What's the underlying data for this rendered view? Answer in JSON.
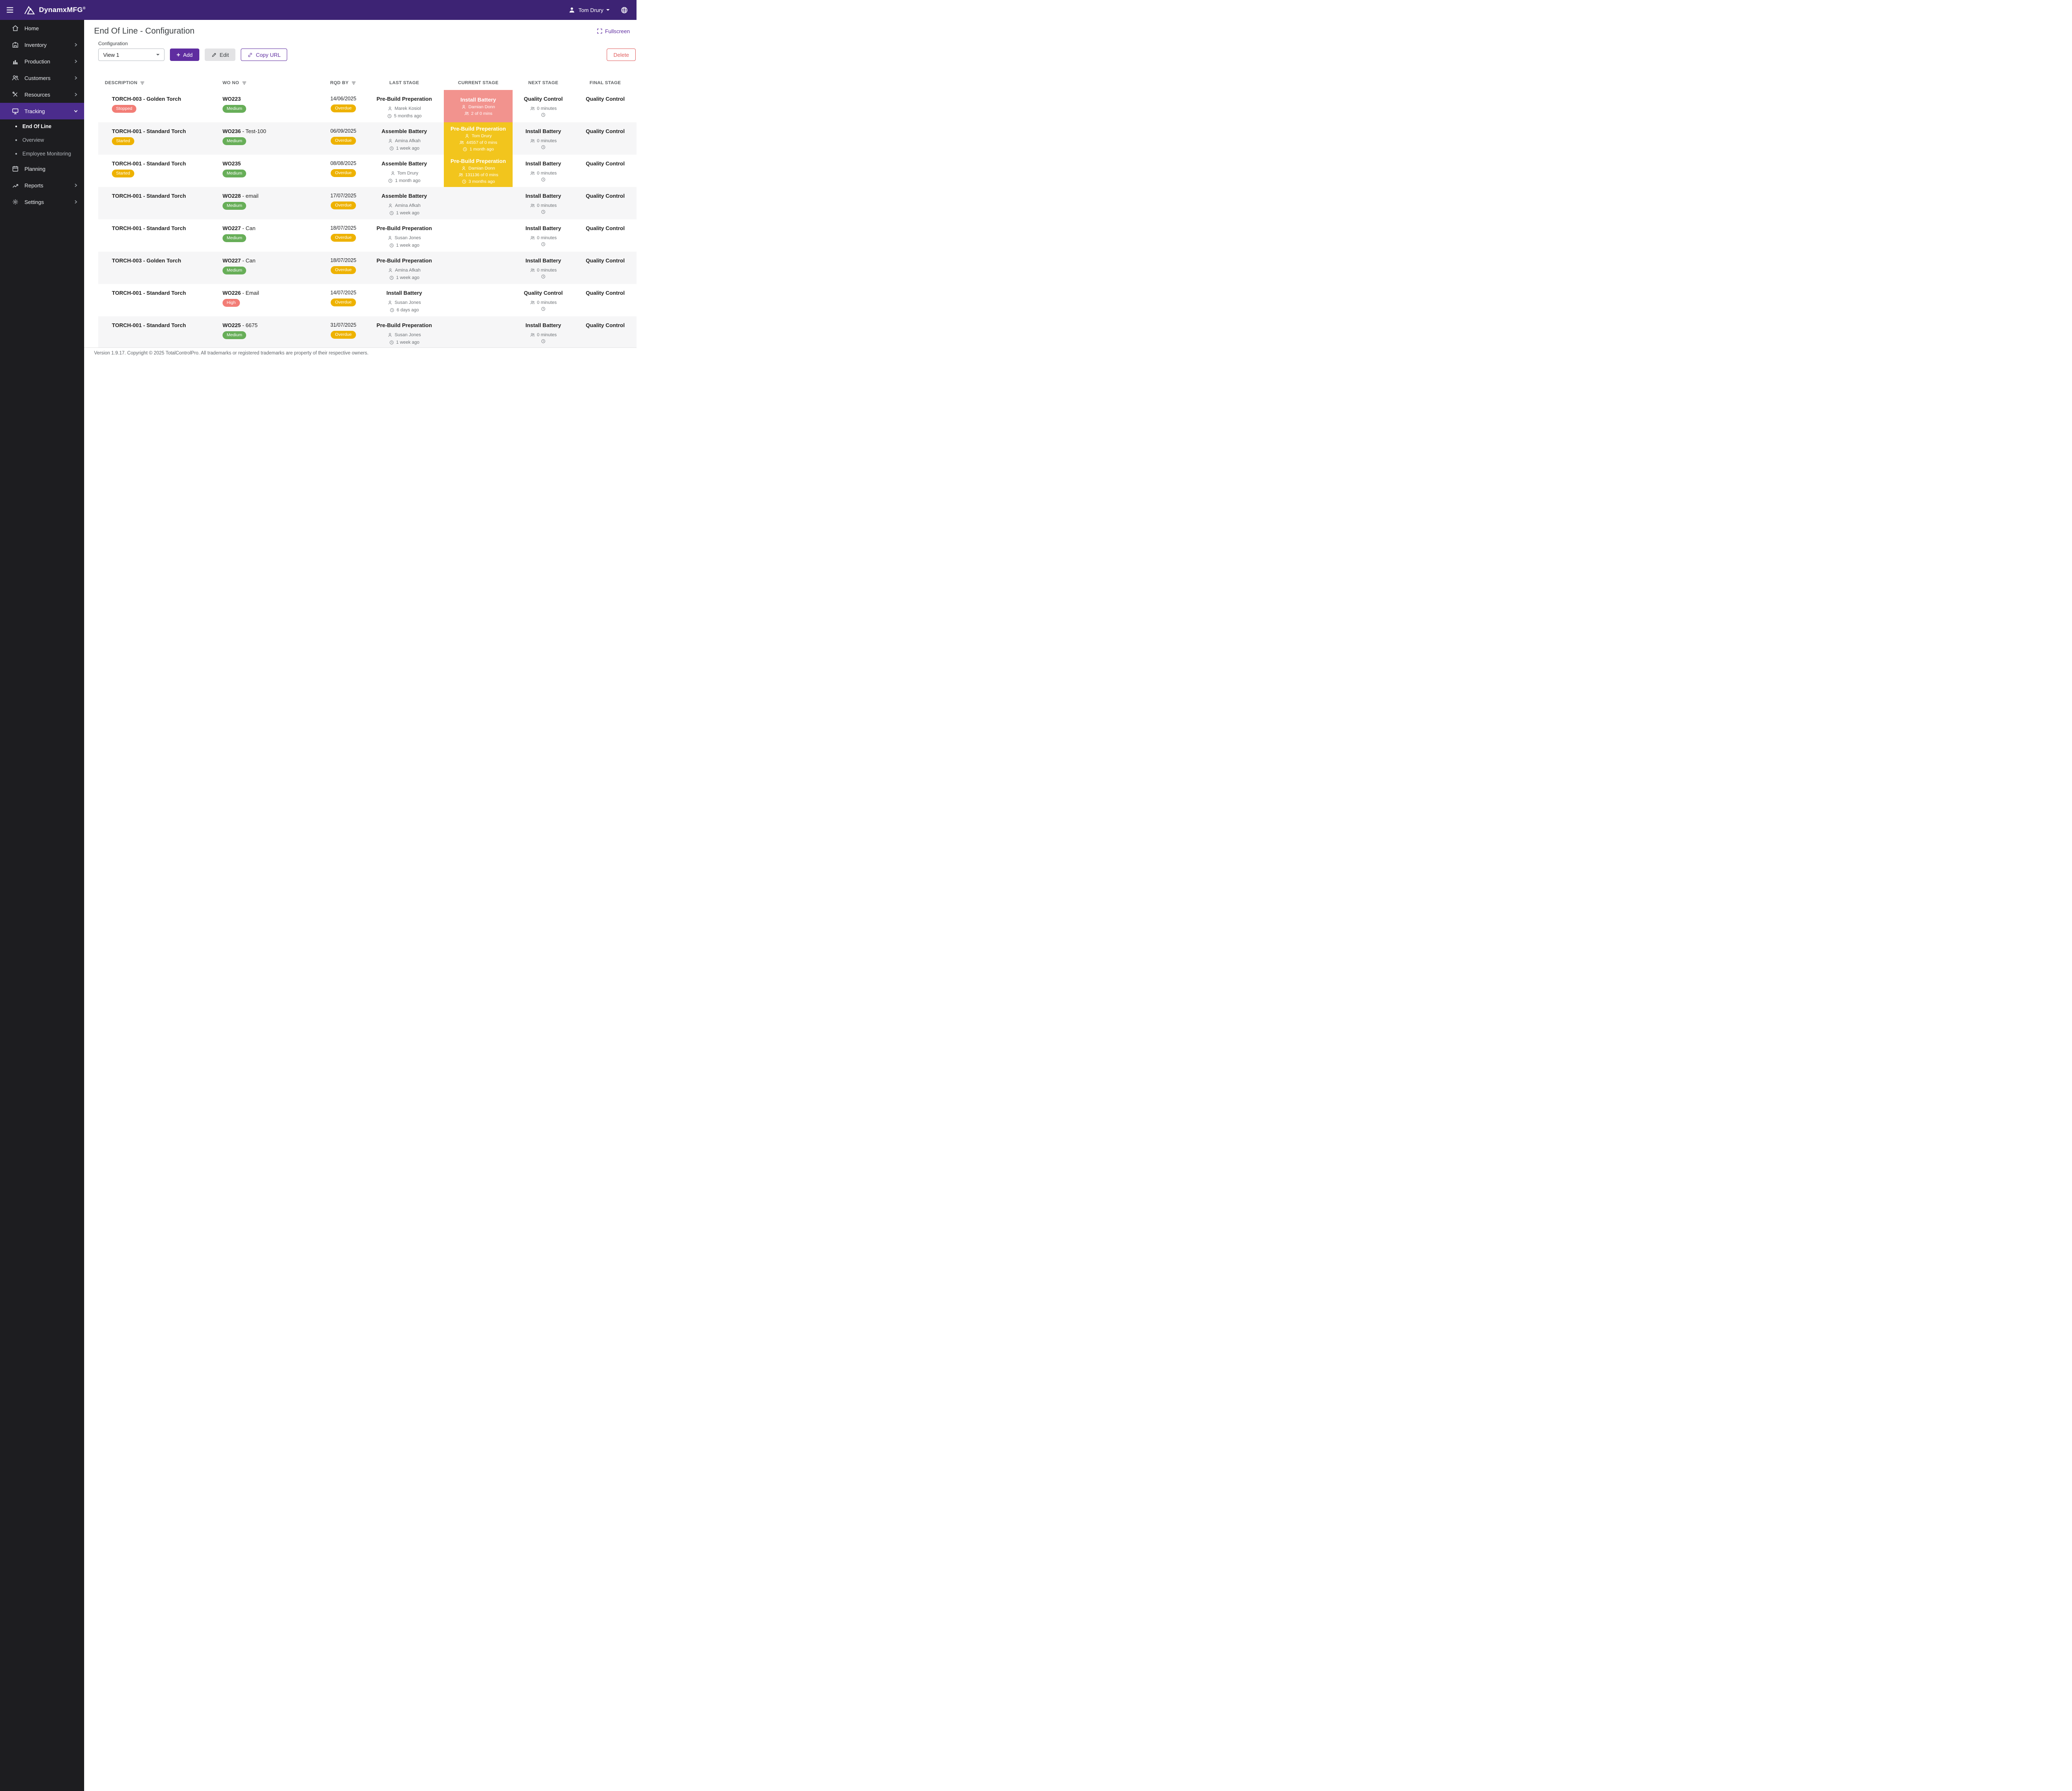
{
  "colors": {
    "topbar": "#3d2374",
    "sidebar": "#1d1d20",
    "sidebar_active": "#4b2c8c",
    "accent": "#5f2da0",
    "green": "#67ae58",
    "amber": "#eeb200",
    "red": "#f27d76",
    "box_red": "#f2938e",
    "box_amber": "#f2c51d",
    "delete": "#e05c5c"
  },
  "topbar": {
    "brand": "DynamxMFG",
    "brand_sup": "®",
    "user": "Tom Drury"
  },
  "sidebar": {
    "items": [
      {
        "id": "home",
        "label": "Home",
        "icon": "home-icon",
        "chevron": null
      },
      {
        "id": "inventory",
        "label": "Inventory",
        "icon": "inventory-icon",
        "chevron": "right"
      },
      {
        "id": "production",
        "label": "Production",
        "icon": "production-icon",
        "chevron": "right"
      },
      {
        "id": "customers",
        "label": "Customers",
        "icon": "customers-icon",
        "chevron": "right"
      },
      {
        "id": "resources",
        "label": "Resources",
        "icon": "resources-icon",
        "chevron": "right"
      },
      {
        "id": "tracking",
        "label": "Tracking",
        "icon": "tracking-icon",
        "chevron": "down",
        "active": true,
        "children": [
          "End Of Line",
          "Overview",
          "Employee Monitoring"
        ],
        "active_child": "End Of Line"
      },
      {
        "id": "planning",
        "label": "Planning",
        "icon": "planning-icon",
        "chevron": null
      },
      {
        "id": "reports",
        "label": "Reports",
        "icon": "reports-icon",
        "chevron": "right"
      },
      {
        "id": "settings",
        "label": "Settings",
        "icon": "settings-icon",
        "chevron": "right"
      }
    ]
  },
  "page": {
    "title": "End Of Line - Configuration",
    "fullscreen_label": "Fullscreen"
  },
  "config": {
    "label": "Configuration",
    "view_value": "View 1",
    "add_label": "Add",
    "edit_label": "Edit",
    "copy_url_label": "Copy URL",
    "delete_label": "Delete"
  },
  "table": {
    "headers": [
      {
        "label": "DESCRIPTION",
        "filter": true
      },
      {
        "label": "WO NO",
        "filter": true
      },
      {
        "label": "RQD BY",
        "filter": true
      },
      {
        "label": "LAST STAGE",
        "filter": false
      },
      {
        "label": "CURRENT STAGE",
        "filter": false
      },
      {
        "label": "NEXT STAGE",
        "filter": false
      },
      {
        "label": "FINAL STAGE",
        "filter": false
      }
    ],
    "rows": [
      {
        "description": "TORCH-003 - Golden Torch",
        "status": {
          "label": "Stopped",
          "type": "red"
        },
        "wo": "WO223",
        "wo_suffix": "",
        "priority": {
          "label": "Medium",
          "type": "green"
        },
        "date": "14/06/2025",
        "due": {
          "label": "Overdue",
          "type": "amber"
        },
        "last": {
          "stage": "Pre-Build Preperation",
          "person": "Marek Kosiol",
          "ago": "5 months ago"
        },
        "current": {
          "stage": "Install Battery",
          "person": "Damian Donn",
          "mins": "2 of 0 mins",
          "ago": "",
          "type": "red"
        },
        "next": {
          "stage": "Quality Control",
          "minutes": "0 minutes"
        },
        "final": "Quality Control"
      },
      {
        "description": "TORCH-001 - Standard Torch",
        "status": {
          "label": "Started",
          "type": "amber"
        },
        "wo": "WO236",
        "wo_suffix": "- Test-100",
        "priority": {
          "label": "Medium",
          "type": "green"
        },
        "date": "06/09/2025",
        "due": {
          "label": "Overdue",
          "type": "amber"
        },
        "last": {
          "stage": "Assemble Battery",
          "person": "Amina Afkah",
          "ago": "1 week ago"
        },
        "current": {
          "stage": "Pre-Build Preperation",
          "person": "Tom Drury",
          "mins": "44557 of 0 mins",
          "ago": "1 month ago",
          "type": "amber"
        },
        "next": {
          "stage": "Install Battery",
          "minutes": "0 minutes"
        },
        "final": "Quality Control"
      },
      {
        "description": "TORCH-001 - Standard Torch",
        "status": {
          "label": "Started",
          "type": "amber"
        },
        "wo": "WO235",
        "wo_suffix": "",
        "priority": {
          "label": "Medium",
          "type": "green"
        },
        "date": "08/08/2025",
        "due": {
          "label": "Overdue",
          "type": "amber"
        },
        "last": {
          "stage": "Assemble Battery",
          "person": "Tom Drury",
          "ago": "1 month ago"
        },
        "current": {
          "stage": "Pre-Build Preperation",
          "person": "Damian Donn",
          "mins": "131136 of 0 mins",
          "ago": "3 months ago",
          "type": "amber"
        },
        "next": {
          "stage": "Install Battery",
          "minutes": "0 minutes"
        },
        "final": "Quality Control"
      },
      {
        "description": "TORCH-001 - Standard Torch",
        "status": null,
        "wo": "WO228",
        "wo_suffix": "- email",
        "priority": {
          "label": "Medium",
          "type": "green"
        },
        "date": "17/07/2025",
        "due": {
          "label": "Overdue",
          "type": "amber"
        },
        "last": {
          "stage": "Assemble Battery",
          "person": "Amina Afkah",
          "ago": "1 week ago"
        },
        "current": null,
        "next": {
          "stage": "Install Battery",
          "minutes": "0 minutes"
        },
        "final": "Quality Control"
      },
      {
        "description": "TORCH-001 - Standard Torch",
        "status": null,
        "wo": "WO227",
        "wo_suffix": "- Can",
        "priority": {
          "label": "Medium",
          "type": "green"
        },
        "date": "18/07/2025",
        "due": {
          "label": "Overdue",
          "type": "amber"
        },
        "last": {
          "stage": "Pre-Build Preperation",
          "person": "Susan Jones",
          "ago": "1 week ago"
        },
        "current": null,
        "next": {
          "stage": "Install Battery",
          "minutes": "0 minutes"
        },
        "final": "Quality Control"
      },
      {
        "description": "TORCH-003 - Golden Torch",
        "status": null,
        "wo": "WO227",
        "wo_suffix": "- Can",
        "priority": {
          "label": "Medium",
          "type": "green"
        },
        "date": "18/07/2025",
        "due": {
          "label": "Overdue",
          "type": "amber"
        },
        "last": {
          "stage": "Pre-Build Preperation",
          "person": "Amina Afkah",
          "ago": "1 week ago"
        },
        "current": null,
        "next": {
          "stage": "Install Battery",
          "minutes": "0 minutes"
        },
        "final": "Quality Control"
      },
      {
        "description": "TORCH-001 - Standard Torch",
        "status": null,
        "wo": "WO226",
        "wo_suffix": "- Email",
        "priority": {
          "label": "High",
          "type": "red"
        },
        "date": "14/07/2025",
        "due": {
          "label": "Overdue",
          "type": "amber"
        },
        "last": {
          "stage": "Install Battery",
          "person": "Susan Jones",
          "ago": "6 days ago"
        },
        "current": null,
        "next": {
          "stage": "Quality Control",
          "minutes": "0 minutes"
        },
        "final": "Quality Control"
      },
      {
        "description": "TORCH-001 - Standard Torch",
        "status": null,
        "wo": "WO225",
        "wo_suffix": "- 6675",
        "priority": {
          "label": "Medium",
          "type": "green"
        },
        "date": "31/07/2025",
        "due": {
          "label": "Overdue",
          "type": "amber"
        },
        "last": {
          "stage": "Pre-Build Preperation",
          "person": "Susan Jones",
          "ago": "1 week ago"
        },
        "current": null,
        "next": {
          "stage": "Install Battery",
          "minutes": "0 minutes"
        },
        "final": "Quality Control"
      }
    ]
  },
  "footer": {
    "text": "Version 1.9.17. Copyright © 2025 TotalControlPro. All trademarks or registered trademarks are property of their respective owners."
  }
}
